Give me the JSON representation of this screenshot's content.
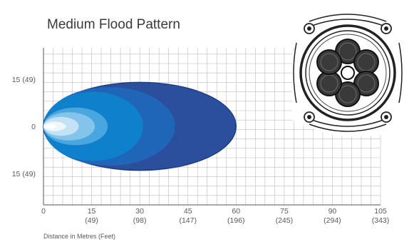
{
  "chart_data": {
    "type": "area",
    "title": "Medium Flood Pattern",
    "xlabel": "Distance in Metres (Feet)",
    "ylabel": "",
    "xlim": [
      0,
      105
    ],
    "ylim": [
      -25,
      25
    ],
    "grid": true,
    "x_ticks": [
      {
        "value": 0,
        "label": "0",
        "sub": ""
      },
      {
        "value": 15,
        "label": "15",
        "sub": "(49)"
      },
      {
        "value": 30,
        "label": "30",
        "sub": "(98)"
      },
      {
        "value": 45,
        "label": "45",
        "sub": "(147)"
      },
      {
        "value": 60,
        "label": "60",
        "sub": "(196)"
      },
      {
        "value": 75,
        "label": "75",
        "sub": "(245)"
      },
      {
        "value": 90,
        "label": "90",
        "sub": "(294)"
      },
      {
        "value": 105,
        "label": "105",
        "sub": "(343)"
      }
    ],
    "y_ticks": [
      {
        "value": 15,
        "label": "15 (49)"
      },
      {
        "value": 0,
        "label": "0"
      },
      {
        "value": -15,
        "label": "15 (49)"
      }
    ],
    "beam_zones": [
      {
        "x_end": 60,
        "half_width": 14,
        "color": "#2b4f9c"
      },
      {
        "x_end": 41,
        "half_width": 12.5,
        "color": "#1f66b8"
      },
      {
        "x_end": 31,
        "half_width": 11,
        "color": "#0f80cc"
      },
      {
        "x_end": 20,
        "half_width": 6,
        "color": "#4aa6de"
      },
      {
        "x_end": 16,
        "half_width": 4.5,
        "color": "#85c4ea"
      },
      {
        "x_end": 11,
        "half_width": 3,
        "color": "#c3e2f6"
      },
      {
        "x_end": 7,
        "half_width": 1.5,
        "color": "#eef7fd"
      },
      {
        "x_end": 4,
        "half_width": 0.8,
        "color": "#ffffff"
      }
    ]
  },
  "product_image": {
    "icon": "led-light-illustration-icon"
  }
}
